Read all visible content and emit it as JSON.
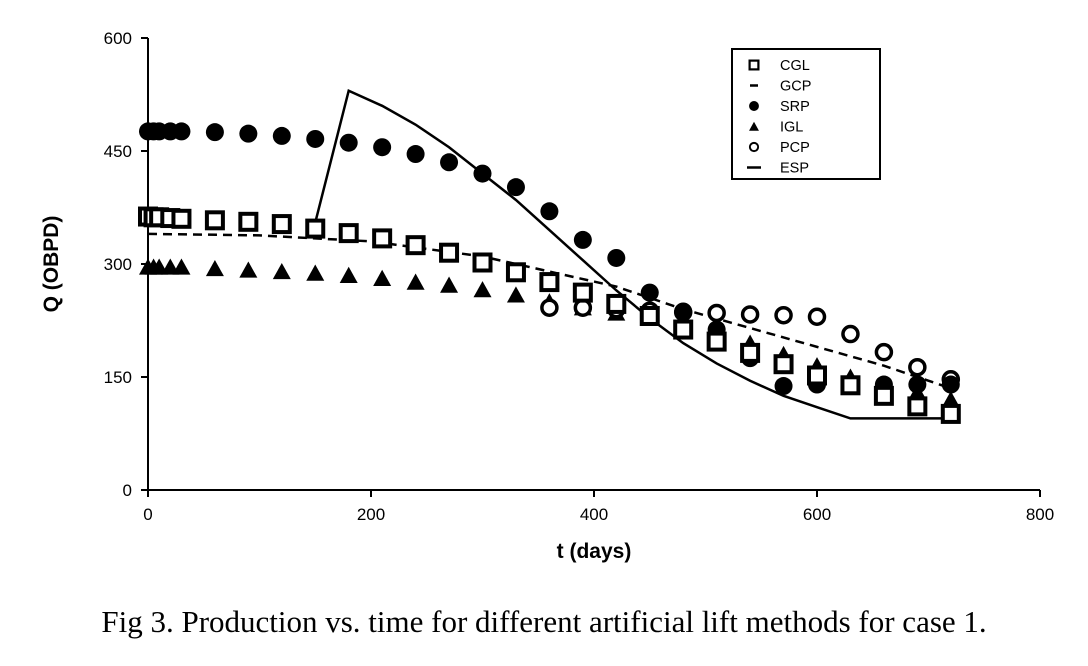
{
  "caption": "Fig 3. Production vs. time for different artificial lift methods for case 1.",
  "chart_data": {
    "type": "scatter",
    "title": "",
    "xlabel": "t (days)",
    "ylabel": "Q (OBPD)",
    "xlim": [
      0,
      800
    ],
    "ylim": [
      0,
      600
    ],
    "xticks": [
      0,
      200,
      400,
      600,
      800
    ],
    "yticks": [
      0,
      150,
      300,
      450,
      600
    ],
    "x_tick_labels": [
      "0",
      "200",
      "400",
      "600",
      "800"
    ],
    "y_tick_labels": [
      "0",
      "150",
      "300",
      "450",
      "600"
    ],
    "grid": false,
    "legend_position": "top-right",
    "series": [
      {
        "name": "CGL",
        "marker": "square-open",
        "line": "none",
        "color": "#000000",
        "x": [
          0,
          5,
          10,
          20,
          30,
          60,
          90,
          120,
          150,
          180,
          210,
          240,
          270,
          300,
          330,
          360,
          390,
          420,
          450,
          480,
          510,
          540,
          570,
          600,
          630,
          660,
          690,
          720
        ],
        "y": [
          363,
          362,
          362,
          361,
          360,
          358,
          356,
          353,
          347,
          341,
          334,
          325,
          315,
          302,
          289,
          276,
          262,
          247,
          231,
          213,
          197,
          182,
          167,
          152,
          139,
          125,
          111,
          101
        ]
      },
      {
        "name": "GCP",
        "marker": "none",
        "line": "dashed",
        "color": "#000000",
        "x": [
          0,
          100,
          200,
          300,
          360,
          420,
          480,
          540,
          600,
          660,
          720
        ],
        "y": [
          340,
          338,
          330,
          310,
          290,
          270,
          240,
          215,
          190,
          165,
          135
        ]
      },
      {
        "name": "SRP",
        "marker": "circle-filled",
        "line": "none",
        "color": "#000000",
        "x": [
          0,
          5,
          10,
          20,
          30,
          60,
          90,
          120,
          150,
          180,
          210,
          240,
          270,
          300,
          330,
          360,
          390,
          420,
          450,
          480,
          510,
          540,
          570,
          600,
          630,
          660,
          690,
          720
        ],
        "y": [
          476,
          476,
          476,
          476,
          476,
          475,
          473,
          470,
          466,
          461,
          455,
          446,
          435,
          420,
          402,
          370,
          332,
          308,
          262,
          237,
          213,
          175,
          138,
          140,
          140,
          140,
          140,
          140
        ]
      },
      {
        "name": "IGL",
        "marker": "triangle-filled",
        "line": "none",
        "color": "#000000",
        "x": [
          0,
          5,
          10,
          20,
          30,
          60,
          90,
          120,
          150,
          180,
          210,
          240,
          270,
          300,
          330,
          360,
          390,
          420,
          450,
          480,
          510,
          540,
          570,
          600,
          630,
          660,
          690,
          720
        ],
        "y": [
          296,
          296,
          296,
          296,
          296,
          294,
          292,
          290,
          288,
          285,
          281,
          276,
          272,
          266,
          259,
          250,
          242,
          235,
          228,
          220,
          212,
          195,
          180,
          165,
          150,
          140,
          130,
          120
        ]
      },
      {
        "name": "PCP",
        "marker": "circle-open",
        "line": "none",
        "color": "#000000",
        "x": [
          360,
          390,
          420,
          450,
          480,
          510,
          540,
          570,
          600,
          630,
          660,
          690,
          720
        ],
        "y": [
          242,
          242,
          240,
          238,
          236,
          235,
          233,
          232,
          230,
          207,
          183,
          163,
          147
        ]
      },
      {
        "name": "ESP",
        "marker": "none",
        "line": "solid",
        "color": "#000000",
        "x": [
          150,
          180,
          210,
          240,
          270,
          300,
          330,
          360,
          390,
          420,
          450,
          480,
          510,
          540,
          570,
          600,
          630,
          660,
          690,
          720
        ],
        "y": [
          355,
          530,
          510,
          485,
          455,
          420,
          385,
          345,
          305,
          265,
          228,
          195,
          168,
          145,
          125,
          110,
          95,
          95,
          95,
          95
        ]
      }
    ]
  }
}
